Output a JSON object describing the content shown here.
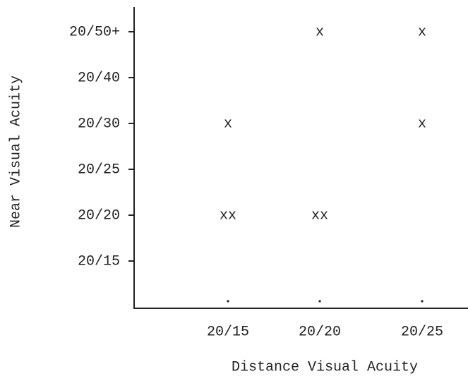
{
  "chart_data": {
    "type": "scatter",
    "xlabel": "Distance Visual Acuity",
    "ylabel": "Near Visual Acuity",
    "x_categories": [
      "20/15",
      "20/20",
      "20/25"
    ],
    "y_categories": [
      "20/15",
      "20/20",
      "20/25",
      "20/30",
      "20/40",
      "20/50+"
    ],
    "points": {
      "x": [
        "20/15",
        "20/15",
        "20/20",
        "20/20",
        "20/25",
        "20/25"
      ],
      "y": [
        "20/30",
        "20/20",
        "20/50+",
        "20/20",
        "20/50+",
        "20/30"
      ],
      "count": [
        1,
        2,
        1,
        2,
        1,
        1
      ]
    },
    "color": "#222222"
  }
}
